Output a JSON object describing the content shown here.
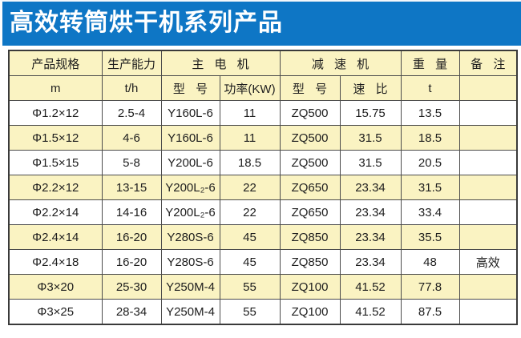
{
  "banner": {
    "title": "高效转筒烘干机系列产品",
    "background_color": "#0e76c5",
    "text_color": "#ffffff"
  },
  "colors": {
    "row_highlight_cream": "#faf3c2",
    "row_plain_white": "#ffffff",
    "grid_line": "#4c4c4c",
    "outer_border": "#3a3a3a",
    "text": "#1e1e1e"
  },
  "table": {
    "group_headers": [
      "产品规格",
      "生产能力",
      "主 电 机",
      "减 速 机",
      "重 量",
      "备 注"
    ],
    "sub_headers": [
      "m",
      "t/h",
      "型 号",
      "功率(KW)",
      "型 号",
      "速 比",
      "t",
      ""
    ],
    "rows": [
      [
        "Φ1.2×12",
        "2.5-4",
        "Y160L-6",
        "11",
        "ZQ500",
        "15.75",
        "13.5",
        ""
      ],
      [
        "Φ1.5×12",
        "4-6",
        "Y160L-6",
        "11",
        "ZQ500",
        "31.5",
        "18.5",
        ""
      ],
      [
        "Φ1.5×15",
        "5-8",
        "Y200L-6",
        "18.5",
        "ZQ500",
        "31.5",
        "20.5",
        ""
      ],
      [
        "Φ2.2×12",
        "13-15",
        "Y200L₂-6",
        "22",
        "ZQ650",
        "23.34",
        "31.5",
        ""
      ],
      [
        "Φ2.2×14",
        "14-16",
        "Y200L₂-6",
        "22",
        "ZQ650",
        "23.34",
        "33.4",
        ""
      ],
      [
        "Φ2.4×14",
        "16-20",
        "Y280S-6",
        "45",
        "ZQ850",
        "23.34",
        "35.5",
        ""
      ],
      [
        "Φ2.4×18",
        "16-20",
        "Y280S-6",
        "45",
        "ZQ850",
        "23.34",
        "48",
        "高效"
      ],
      [
        "Φ3×20",
        "25-30",
        "Y250M-4",
        "55",
        "ZQ100",
        "41.52",
        "77.8",
        ""
      ],
      [
        "Φ3×25",
        "28-34",
        "Y250M-4",
        "55",
        "ZQ100",
        "41.52",
        "87.5",
        ""
      ]
    ]
  }
}
